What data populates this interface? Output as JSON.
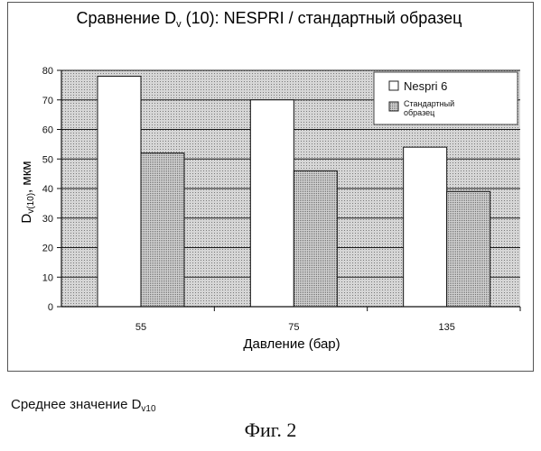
{
  "chart_data": {
    "type": "bar",
    "title_main": "Сравнение D",
    "title_sub": "v",
    "title_rest": " (10): NESPRI / стандартный образец",
    "ylabel_main": "D",
    "ylabel_sub": "v(10)",
    "ylabel_rest": ", мкм",
    "xlabel": "Давление (бар)",
    "categories": [
      "55",
      "75",
      "135"
    ],
    "ylim": [
      0,
      80
    ],
    "yticks": [
      0,
      10,
      20,
      30,
      40,
      50,
      60,
      70,
      80
    ],
    "grid": true,
    "legend_position": "top-right",
    "series": [
      {
        "name": "Nespri 6",
        "values": [
          78,
          70,
          54
        ],
        "color": "#ffffff"
      },
      {
        "name_line1": "Стандартный",
        "name_line2": "образец",
        "values": [
          52,
          46,
          39
        ],
        "color": "#bdbdbd"
      }
    ],
    "plot_background": "#c8c8c8"
  },
  "captions": {
    "average_main": "Среднее значение D",
    "average_sub": "v10",
    "figure": "Фиг. 2"
  }
}
